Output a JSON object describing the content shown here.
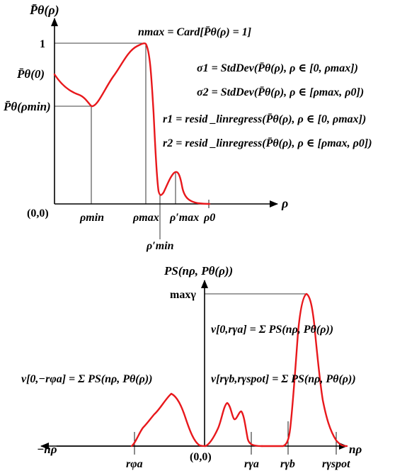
{
  "top": {
    "y_axis_title": "P̄θ(ρ)",
    "x_axis_title": "ρ",
    "y_label_one": "1",
    "y_label_p0": "P̄θ(0)",
    "y_label_pmin": "P̄θ(ρmin)",
    "origin": "(0,0)",
    "x_label_rho_min": "ρmin",
    "x_label_rho_max": "ρmax",
    "x_label_rho_max_prime": "ρ′max",
    "x_label_rho_0": "ρ0",
    "x_label_rho_min_prime": "ρ′min",
    "eq_nmax": "nmax = Card[P̄θ(ρ) = 1]",
    "eq_sigma1": "σ1 = StdDev(P̄θ(ρ), ρ ∈ [0, ρmax])",
    "eq_sigma2": "σ2 = StdDev(P̄θ(ρ), ρ ∈ [ρmax, ρ0])",
    "eq_r1": "r1 = resid _linregress(P̄θ(ρ), ρ ∈ [0, ρmax])",
    "eq_r2": "r2 = resid _linregress(P̄θ(ρ), ρ ∈ [ρmax, ρ0])"
  },
  "bottom": {
    "y_axis_title": "PS(nρ, Pθ(ρ))",
    "y_label_max": "maxγ",
    "x_axis_title": "nρ",
    "x_left_label": "−nρ",
    "origin": "(0,0)",
    "x_label_ra_phi": "rφa",
    "x_label_ra_gamma": "rγa",
    "x_label_rb_gamma": "rγb",
    "x_label_rspot_gamma": "rγspot",
    "eq_nu_phi": "ν[0,−rφa] = Σ PS(nρ, Pθ(ρ))",
    "eq_nu_gamma_a": "ν[0,rγa] = Σ PS(nρ, Pθ(ρ))",
    "eq_nu_gamma_b": "ν[rγb,rγspot] = Σ PS(nρ, Pθ(ρ))"
  },
  "colors": {
    "curve": "#e8181c",
    "axis": "#000000"
  }
}
